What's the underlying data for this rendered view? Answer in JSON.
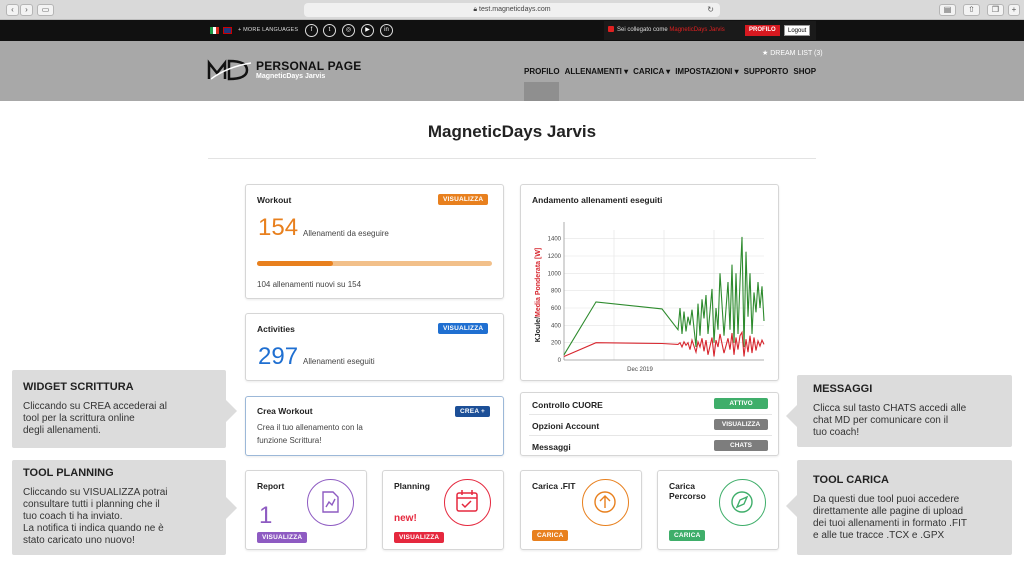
{
  "browser": {
    "url": "test.magneticdays.com"
  },
  "topbar": {
    "more_languages": "+ MORE LANGUAGES",
    "social_icons": [
      "facebook-icon",
      "twitter-icon",
      "instagram-icon",
      "youtube-icon",
      "linkedin-icon"
    ],
    "logged_prefix": "Sei collegato come",
    "logged_user": "MagneticDays Jarvis",
    "profile_button": "PROFILO",
    "logout_button": "Logout"
  },
  "header": {
    "brand": "PERSONAL PAGE",
    "brand_sub": "MagneticDays Jarvis",
    "dream_list": "★ DREAM LIST (3)",
    "nav": [
      "PROFILO",
      "ALLENAMENTI ▾",
      "CARICA ▾",
      "IMPOSTAZIONI ▾",
      "SUPPORTO",
      "SHOP"
    ]
  },
  "page_title": "MagneticDays Jarvis",
  "workout": {
    "title": "Workout",
    "button": "VISUALIZZA",
    "count": "154",
    "count_label": "Allenamenti da eseguire",
    "progress": 0.325,
    "progress_text": "104 allenamenti nuovi su 154"
  },
  "activities": {
    "title": "Activities",
    "button": "VISUALIZZA",
    "count": "297",
    "count_label": "Allenamenti eseguiti"
  },
  "crea": {
    "title": "Crea Workout",
    "button": "CREA +",
    "text_1": "Crea il tuo allenamento con la",
    "text_2": "funzione Scrittura!"
  },
  "report": {
    "title": "Report",
    "count": "1",
    "button": "VISUALIZZA"
  },
  "planning": {
    "title": "Planning",
    "new": "new!",
    "button": "VISUALIZZA"
  },
  "carica_fit": {
    "title": "Carica .FIT",
    "button": "CARICA"
  },
  "carica_percorso": {
    "title_1": "Carica",
    "title_2": "Percorso",
    "button": "CARICA"
  },
  "list": [
    {
      "label": "Controllo CUORE",
      "badge": "ATTIVO",
      "color": "#3fae6a"
    },
    {
      "label": "Opzioni Account",
      "badge": "VISUALIZZA",
      "color": "#7d7d7d"
    },
    {
      "label": "Messaggi",
      "badge": "CHATS",
      "color": "#7d7d7d"
    }
  ],
  "side": {
    "scrittura": {
      "title": "WIDGET SCRITTURA",
      "lines": [
        "Cliccando su CREA accederai al",
        "tool per la scrittura online",
        "degli allenamenti."
      ]
    },
    "planning": {
      "title": "TOOL PLANNING",
      "lines": [
        "Cliccando su VISUALIZZA potrai",
        "consultare tutti i planning che il",
        "tuo coach ti ha inviato.",
        "La notifica ti indica quando ne è",
        "stato caricato uno nuovo!"
      ]
    },
    "messaggi": {
      "title": "MESSAGGI",
      "lines": [
        "Clicca sul tasto CHATS accedi alle",
        "chat MD per comunicare con il",
        "tuo coach!"
      ]
    },
    "carica": {
      "title": "TOOL CARICA",
      "lines": [
        "Da questi due tool puoi accedere",
        "direttamente alle pagine di upload",
        "dei tuoi allenamenti in formato .FIT",
        "e alle tue tracce .TCX e .GPX"
      ]
    }
  },
  "colors": {
    "orange": "#e8801e",
    "blue": "#1f6fd1",
    "purple": "#8e5bc2",
    "red": "#e5283e",
    "green": "#3fae6a",
    "darkblue": "#1c4f97"
  },
  "chart_data": {
    "type": "line",
    "title": "Andamento allenamenti eseguiti",
    "ylabel_part1": "KJoule/",
    "ylabel_part2": "Media Ponderata [W]",
    "x_tick": "Dec 2019",
    "yticks": [
      0,
      200,
      400,
      600,
      800,
      1000,
      1200,
      1400
    ],
    "ylim": [
      0,
      1500
    ],
    "x_domain_days": [
      0,
      100
    ],
    "series": [
      {
        "color": "#2e8b2e",
        "x": [
          0,
          16,
          49,
          57,
          58,
          59,
          60,
          61,
          62,
          63,
          64,
          66,
          67,
          68,
          69,
          70,
          71,
          72,
          74,
          75,
          76,
          77,
          78,
          80,
          82,
          83,
          84,
          85,
          86,
          87,
          88,
          89,
          90,
          91,
          92,
          93,
          94,
          95,
          96,
          97,
          98,
          99,
          100
        ],
        "y": [
          60,
          670,
          590,
          350,
          600,
          300,
          560,
          330,
          500,
          400,
          580,
          150,
          650,
          280,
          700,
          480,
          750,
          300,
          820,
          200,
          600,
          350,
          1000,
          280,
          900,
          350,
          1100,
          200,
          1000,
          300,
          900,
          1420,
          150,
          1250,
          500,
          1000,
          300,
          780,
          550,
          900,
          600,
          850,
          450
        ]
      },
      {
        "color": "#d7262e",
        "x": [
          0,
          16,
          49,
          57,
          58,
          59,
          60,
          61,
          62,
          63,
          64,
          66,
          67,
          68,
          69,
          70,
          71,
          72,
          74,
          75,
          76,
          77,
          78,
          80,
          82,
          83,
          84,
          85,
          86,
          87,
          88,
          89,
          90,
          91,
          92,
          93,
          94,
          95,
          96,
          97,
          98,
          99,
          100
        ],
        "y": [
          40,
          200,
          190,
          180,
          200,
          150,
          210,
          170,
          200,
          120,
          230,
          90,
          210,
          150,
          250,
          100,
          230,
          60,
          260,
          40,
          230,
          150,
          300,
          80,
          250,
          120,
          310,
          60,
          260,
          120,
          280,
          320,
          40,
          240,
          90,
          280,
          80,
          260,
          110,
          220,
          160,
          230,
          180
        ]
      }
    ]
  }
}
